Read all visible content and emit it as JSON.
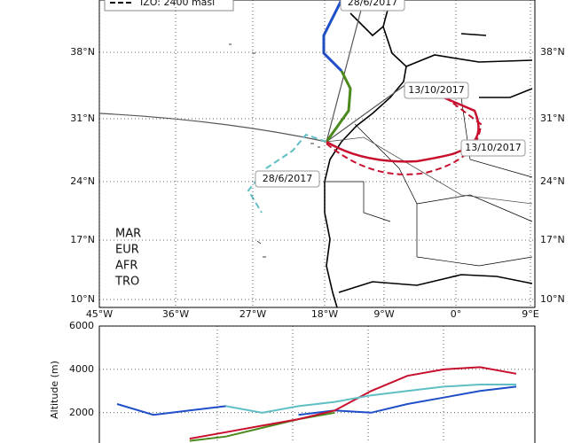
{
  "map": {
    "legend": "IZO: 2400 masl",
    "lon_ticks": [
      "45°W",
      "36°W",
      "27°W",
      "18°W",
      "9°W",
      "0°",
      "9°E"
    ],
    "lat_ticks": [
      "38°N",
      "31°N",
      "24°N",
      "17°N",
      "10°N"
    ],
    "labels": [
      "28/6/2017",
      "13/10/2017",
      "13/10/2017",
      "28/6/2017"
    ]
  },
  "chart_data": {
    "type": "line",
    "ylabel": "Altitude (m)",
    "categories": [
      null,
      null,
      null,
      null,
      null,
      null,
      null,
      null,
      null,
      null,
      null,
      null
    ],
    "ylim": [
      600,
      6000
    ],
    "yticks": [
      2000,
      4000,
      6000
    ],
    "grid": true,
    "series": [
      {
        "name": "MAR",
        "color": "#1f4fc8",
        "values": [
          2400,
          1900,
          2100,
          2300,
          null,
          1900,
          2100,
          2000,
          2400,
          2700,
          3000,
          3200
        ]
      },
      {
        "name": "EUR",
        "color": "#4a8a1c",
        "values": [
          null,
          null,
          700,
          900,
          1300,
          1700,
          2000,
          null,
          null,
          null,
          null,
          null
        ]
      },
      {
        "name": "AFR",
        "color": "#c8102e",
        "values": [
          null,
          null,
          800,
          1100,
          1400,
          1700,
          2100,
          3000,
          3700,
          4000,
          4100,
          3800
        ]
      },
      {
        "name": "TRO",
        "color": "#5fbfc4",
        "values": [
          null,
          null,
          null,
          2300,
          2000,
          2300,
          2500,
          2800,
          3000,
          3200,
          3300,
          3300
        ]
      }
    ]
  }
}
